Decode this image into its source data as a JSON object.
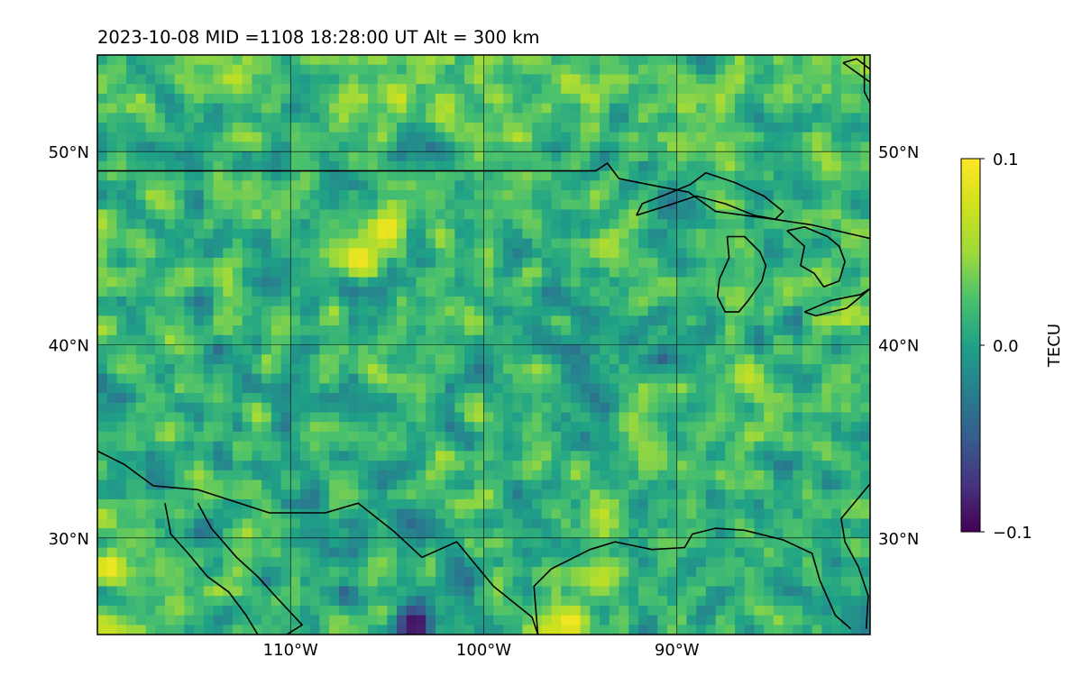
{
  "title": "2023-10-08  MID =1108    18:28:00  UT  Alt = 300 km",
  "chart_data": {
    "type": "heatmap",
    "title": "2023-10-08  MID =1108    18:28:00  UT  Alt = 300 km",
    "x_range": [
      -120,
      -80
    ],
    "y_range": [
      25,
      55
    ],
    "xlabel": "",
    "ylabel": "",
    "x_ticks": [
      {
        "value": -110,
        "label": "110°W"
      },
      {
        "value": -100,
        "label": "100°W"
      },
      {
        "value": -90,
        "label": "90°W"
      }
    ],
    "y_ticks": [
      {
        "value": 30,
        "label": "30°N"
      },
      {
        "value": 40,
        "label": "40°N"
      },
      {
        "value": 50,
        "label": "50°N"
      }
    ],
    "grid": true,
    "colormap": "viridis",
    "colorbar": {
      "label": "TECU",
      "range": [
        -0.1,
        0.1
      ],
      "ticks": [
        {
          "value": 0.1,
          "label": "0.1"
        },
        {
          "value": 0.0,
          "label": "0.0"
        },
        {
          "value": -0.1,
          "label": "−0.1"
        }
      ]
    },
    "hotspots": [
      {
        "lon": -105,
        "lat": 46,
        "value": 0.1
      },
      {
        "lon": -106.5,
        "lat": 44.5,
        "value": 0.1
      },
      {
        "lon": -119.4,
        "lat": 28.5,
        "value": 0.1
      },
      {
        "lon": -95.5,
        "lat": 25.6,
        "value": 0.1
      },
      {
        "lon": -103.5,
        "lat": 25.5,
        "value": -0.1
      }
    ],
    "coastlines": [
      {
        "name": "us-canada-border",
        "points": [
          [
            -120,
            49
          ],
          [
            -94.2,
            49
          ],
          [
            -93.6,
            49.4
          ],
          [
            -93,
            48.6
          ],
          [
            -91,
            48.2
          ],
          [
            -89.4,
            47.9
          ],
          [
            -88,
            46.9
          ],
          [
            -85,
            46.5
          ],
          [
            -83,
            46.2
          ],
          [
            -80,
            45.5
          ]
        ]
      },
      {
        "name": "lake-superior",
        "points": [
          [
            -92.1,
            46.7
          ],
          [
            -90.5,
            47.2
          ],
          [
            -89,
            47.7
          ],
          [
            -87.5,
            47.3
          ],
          [
            -86,
            46.7
          ],
          [
            -84.9,
            46.5
          ],
          [
            -84.5,
            46.9
          ],
          [
            -85.5,
            47.7
          ],
          [
            -87,
            48.4
          ],
          [
            -88.5,
            48.9
          ],
          [
            -89.3,
            48.3
          ],
          [
            -90.5,
            47.8
          ],
          [
            -91.8,
            47.3
          ],
          [
            -92.1,
            46.7
          ]
        ]
      },
      {
        "name": "lake-michigan",
        "points": [
          [
            -87.4,
            45.6
          ],
          [
            -86.5,
            45.6
          ],
          [
            -85.7,
            44.8
          ],
          [
            -85.4,
            44.1
          ],
          [
            -85.6,
            43.3
          ],
          [
            -86.3,
            42.3
          ],
          [
            -86.8,
            41.7
          ],
          [
            -87.5,
            41.7
          ],
          [
            -87.9,
            42.5
          ],
          [
            -87.8,
            43.4
          ],
          [
            -87.3,
            44.5
          ],
          [
            -87.4,
            45.6
          ]
        ]
      },
      {
        "name": "lake-huron",
        "points": [
          [
            -84.3,
            45.9
          ],
          [
            -83.4,
            46.1
          ],
          [
            -82.2,
            45.6
          ],
          [
            -81.6,
            45.1
          ],
          [
            -81.3,
            44.3
          ],
          [
            -81.6,
            43.3
          ],
          [
            -82.4,
            43.0
          ],
          [
            -82.9,
            43.7
          ],
          [
            -83.6,
            44.1
          ],
          [
            -83.4,
            45.1
          ],
          [
            -84.3,
            45.9
          ]
        ]
      },
      {
        "name": "lake-erie",
        "points": [
          [
            -83.4,
            41.7
          ],
          [
            -82,
            42.3
          ],
          [
            -80.5,
            42.6
          ],
          [
            -80,
            42.9
          ],
          [
            -81.2,
            41.9
          ],
          [
            -82.8,
            41.5
          ],
          [
            -83.4,
            41.7
          ]
        ]
      },
      {
        "name": "james-bay-coast",
        "points": [
          [
            -80.3,
            55
          ],
          [
            -80.3,
            53.1
          ],
          [
            -80,
            52.5
          ]
        ]
      },
      {
        "name": "hudson-bay-islands",
        "points": [
          [
            -81.4,
            54.6
          ],
          [
            -79.6,
            53.3
          ],
          [
            -78.8,
            51.8
          ],
          [
            -78.2,
            51.5
          ],
          [
            -78.9,
            52.7
          ],
          [
            -79.4,
            53.8
          ],
          [
            -80.7,
            54.8
          ],
          [
            -81.4,
            54.6
          ]
        ]
      },
      {
        "name": "mexico-border",
        "points": [
          [
            -120,
            34.5
          ],
          [
            -118.6,
            33.8
          ],
          [
            -117.1,
            32.7
          ],
          [
            -114.8,
            32.5
          ],
          [
            -111.1,
            31.3
          ],
          [
            -108.2,
            31.3
          ],
          [
            -106.5,
            31.8
          ],
          [
            -104.6,
            30.3
          ],
          [
            -103.2,
            29.0
          ],
          [
            -101.4,
            29.8
          ],
          [
            -99.5,
            27.5
          ],
          [
            -97.5,
            25.9
          ],
          [
            -97.2,
            25.0
          ]
        ]
      },
      {
        "name": "gulf-of-california",
        "points": [
          [
            -114.8,
            31.8
          ],
          [
            -114.1,
            30.5
          ],
          [
            -112.8,
            29.0
          ],
          [
            -111.7,
            28.0
          ],
          [
            -110.8,
            27.0
          ],
          [
            -109.4,
            25.5
          ],
          [
            -110.2,
            25.0
          ]
        ]
      },
      {
        "name": "baja-peninsula",
        "points": [
          [
            -116.5,
            31.8
          ],
          [
            -116.2,
            30.2
          ],
          [
            -115.3,
            29.2
          ],
          [
            -114.3,
            28.0
          ],
          [
            -113.2,
            27.2
          ],
          [
            -112.3,
            26.0
          ],
          [
            -111.7,
            25.0
          ]
        ]
      },
      {
        "name": "gulf-coast",
        "points": [
          [
            -97.2,
            25.0
          ],
          [
            -97.4,
            27.5
          ],
          [
            -96.5,
            28.4
          ],
          [
            -94.5,
            29.4
          ],
          [
            -93.2,
            29.8
          ],
          [
            -91.3,
            29.4
          ],
          [
            -89.6,
            29.5
          ],
          [
            -89.2,
            30.2
          ],
          [
            -88.0,
            30.5
          ],
          [
            -86.5,
            30.4
          ],
          [
            -84.5,
            29.9
          ],
          [
            -83.0,
            29.2
          ],
          [
            -82.6,
            27.8
          ],
          [
            -81.8,
            26.0
          ],
          [
            -81.0,
            25.3
          ]
        ]
      },
      {
        "name": "florida-atlantic-coast",
        "points": [
          [
            -80.2,
            25.3
          ],
          [
            -80.1,
            27.0
          ],
          [
            -80.6,
            28.5
          ],
          [
            -81.3,
            29.8
          ],
          [
            -81.5,
            31.0
          ],
          [
            -80.0,
            32.8
          ]
        ]
      }
    ]
  }
}
